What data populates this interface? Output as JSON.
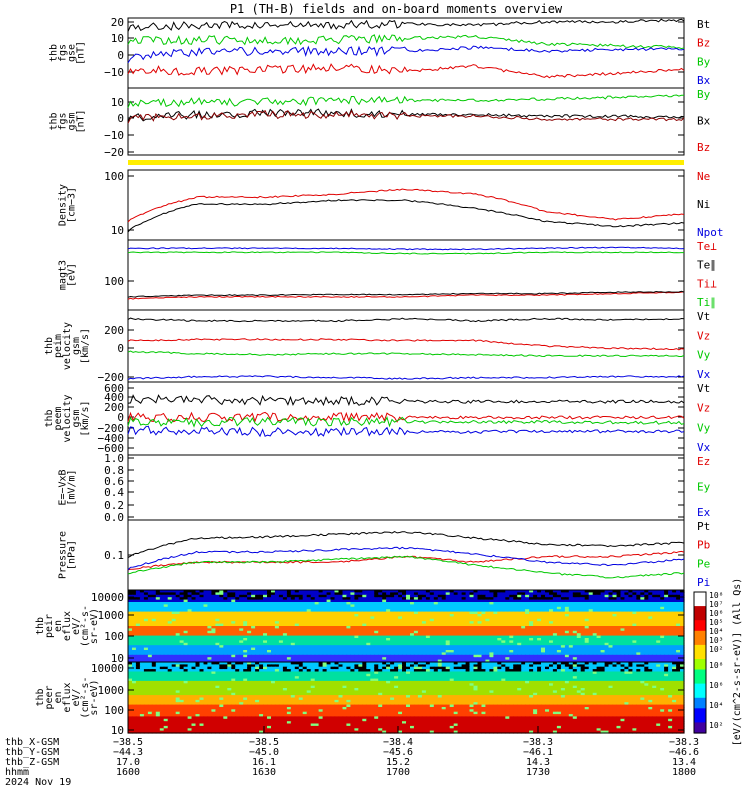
{
  "title": "P1 (TH-B) fields and on-board moments overview",
  "panels": [
    {
      "id": "fgs-gse",
      "ylabel": [
        "thb",
        "fgs",
        "gse",
        "[nT]"
      ],
      "yticks": [
        "20",
        "10",
        "0",
        "−10"
      ],
      "legend": [
        {
          "text": "Bt",
          "color": "#000000"
        },
        {
          "text": "Bz",
          "color": "#e00000"
        },
        {
          "text": "By",
          "color": "#00c800"
        },
        {
          "text": "Bx",
          "color": "#0000e0"
        }
      ]
    },
    {
      "id": "fgs-gsm",
      "ylabel": [
        "thb",
        "fgs",
        "gsm",
        "[nT]"
      ],
      "yticks": [
        "10",
        "0",
        "−10",
        "−20"
      ],
      "legend": [
        {
          "text": "By",
          "color": "#00c800"
        },
        {
          "text": "Bx",
          "color": "#000000"
        },
        {
          "text": "Bz",
          "color": "#e00000"
        }
      ]
    },
    {
      "id": "density",
      "ylabel": [
        "Density",
        "[cm−3]"
      ],
      "yticks": [
        "100",
        "10"
      ],
      "legend": [
        {
          "text": "Ne",
          "color": "#e00000"
        },
        {
          "text": "Ni",
          "color": "#000000"
        },
        {
          "text": "Npot",
          "color": "#0000e0"
        }
      ]
    },
    {
      "id": "temp",
      "ylabel": [
        "magt3",
        "[eV]"
      ],
      "yticks": [
        "100"
      ],
      "legend": [
        {
          "text": "Te⊥",
          "color": "#e00000"
        },
        {
          "text": "Te∥",
          "color": "#000000"
        },
        {
          "text": "Ti⊥",
          "color": "#e00000"
        },
        {
          "text": "Ti∥",
          "color": "#00c800"
        }
      ]
    },
    {
      "id": "peim",
      "ylabel": [
        "thb",
        "peim",
        "velocity",
        "gsm",
        "[km/s]"
      ],
      "yticks": [
        "200",
        "0",
        "−200"
      ],
      "legend": [
        {
          "text": "Vt",
          "color": "#000000"
        },
        {
          "text": "Vz",
          "color": "#e00000"
        },
        {
          "text": "Vy",
          "color": "#00c800"
        },
        {
          "text": "Vx",
          "color": "#0000e0"
        }
      ]
    },
    {
      "id": "peem",
      "ylabel": [
        "thb",
        "peem",
        "velocity",
        "gsm",
        "[km/s]"
      ],
      "yticks": [
        "600",
        "400",
        "200",
        "0",
        "−200",
        "−400",
        "−600"
      ],
      "legend": [
        {
          "text": "Vt",
          "color": "#000000"
        },
        {
          "text": "Vz",
          "color": "#e00000"
        },
        {
          "text": "Vy",
          "color": "#00c800"
        },
        {
          "text": "Vx",
          "color": "#0000e0"
        }
      ]
    },
    {
      "id": "efield",
      "ylabel": [
        "E=−VxB",
        "[mV/m]"
      ],
      "yticks": [
        "1.0",
        "0.8",
        "0.6",
        "0.4",
        "0.2",
        "0.0"
      ],
      "legend": [
        {
          "text": "Ez",
          "color": "#e00000"
        },
        {
          "text": "Ey",
          "color": "#00c800"
        },
        {
          "text": "Ex",
          "color": "#0000e0"
        }
      ]
    },
    {
      "id": "pressure",
      "ylabel": [
        "Pressure",
        "[nPa]"
      ],
      "yticks": [
        "0.1"
      ],
      "legend": [
        {
          "text": "Pt",
          "color": "#000000"
        },
        {
          "text": "Pb",
          "color": "#e00000"
        },
        {
          "text": "Pe",
          "color": "#00c800"
        },
        {
          "text": "Pi",
          "color": "#0000e0"
        }
      ]
    },
    {
      "id": "peir",
      "ylabel": [
        "thb",
        "peir",
        "en",
        "eflux",
        "eV/",
        "(cm²-s-",
        "sr-eV)"
      ],
      "yticks": [
        "10000",
        "1000",
        "100",
        "10"
      ]
    },
    {
      "id": "peer",
      "ylabel": [
        "thb",
        "peer",
        "en",
        "eflux",
        "eV/",
        "(cm²-s-",
        "sr-eV)"
      ],
      "yticks": [
        "10000",
        "1000",
        "100",
        "10"
      ]
    }
  ],
  "colorbar": {
    "label": "[eV/(cm^2-s-sr-eV)] (All Qs)",
    "ticks_top": [
      "10⁸",
      "10⁷",
      "10⁶",
      "10⁵",
      "10⁴",
      "10³",
      "10²"
    ],
    "ticks_bottom": [
      "10⁸",
      "10⁶",
      "10⁴",
      "10²"
    ]
  },
  "xaxis": {
    "rows": [
      {
        "label": "thb_X-GSM",
        "values": [
          "−38.5",
          "−38.5",
          "−38.4",
          "−38.3",
          "−38.3"
        ]
      },
      {
        "label": "thb_Y-GSM",
        "values": [
          "−44.3",
          "−45.0",
          "−45.6",
          "−46.1",
          "−46.6"
        ]
      },
      {
        "label": "thb_Z-GSM",
        "values": [
          "17.0",
          "16.1",
          "15.2",
          "14.3",
          "13.4"
        ]
      },
      {
        "label": "hhmm",
        "values": [
          "1600",
          "1630",
          "1700",
          "1730",
          "1800"
        ]
      }
    ],
    "date": "2024 Nov 19"
  },
  "chart_data": {
    "type": "line",
    "title": "P1 (TH-B) fields and on-board moments overview",
    "x_hhmm": [
      1600,
      1615,
      1630,
      1645,
      1700,
      1715,
      1730,
      1745,
      1800
    ],
    "panels": [
      {
        "name": "thb fgs gse [nT]",
        "ylim": [
          -18,
          20
        ],
        "series": [
          {
            "name": "Bt",
            "values": [
              15,
              16,
              16,
              16,
              17,
              16,
              18,
              18,
              19
            ]
          },
          {
            "name": "Bz",
            "values": [
              -8,
              -9,
              -8,
              -7,
              -9,
              -6,
              -12,
              -10,
              -8
            ]
          },
          {
            "name": "By",
            "values": [
              8,
              8,
              8,
              8,
              9,
              10,
              6,
              5,
              4
            ]
          },
          {
            "name": "Bx",
            "values": [
              -2,
              2,
              2,
              2,
              2,
              4,
              2,
              3,
              3
            ]
          }
        ]
      },
      {
        "name": "thb fgs gsm [nT]",
        "ylim": [
          -28,
          15
        ],
        "series": [
          {
            "name": "By",
            "values": [
              5,
              6,
              6,
              7,
              7,
              7,
              8,
              9,
              10
            ]
          },
          {
            "name": "Bx",
            "values": [
              -4,
              -2,
              -1,
              -1,
              -2,
              -2,
              -3,
              -3,
              -4
            ]
          },
          {
            "name": "Bz",
            "values": [
              -5,
              -3,
              -2,
              -2,
              -3,
              -3,
              -5,
              -5,
              -5
            ]
          }
        ]
      },
      {
        "name": "Density [cm-3]",
        "scale": "log",
        "ylim": [
          7,
          120
        ],
        "series": [
          {
            "name": "Ne",
            "values": [
              15,
              40,
              40,
              45,
              55,
              45,
              22,
              16,
              20
            ]
          },
          {
            "name": "Ni",
            "values": [
              10,
              30,
              30,
              35,
              35,
              25,
              15,
              12,
              14
            ]
          },
          {
            "name": "Npot",
            "values": []
          }
        ]
      },
      {
        "name": "magt3 [eV]",
        "scale": "log",
        "ylim": [
          20,
          1500
        ],
        "series": [
          {
            "name": "Te⊥",
            "values": [
              40,
              45,
              45,
              45,
              45,
              50,
              50,
              55,
              60
            ]
          },
          {
            "name": "Te∥",
            "values": [
              45,
              50,
              50,
              52,
              52,
              55,
              55,
              60,
              62
            ]
          },
          {
            "name": "Ti⊥",
            "values": [
              900,
              900,
              900,
              900,
              850,
              850,
              900,
              950,
              900
            ]
          },
          {
            "name": "Ti∥",
            "values": [
              700,
              700,
              700,
              700,
              650,
              650,
              700,
              700,
              700
            ]
          }
        ]
      },
      {
        "name": "thb peim velocity gsm [km/s]",
        "ylim": [
          -280,
          380
        ],
        "series": [
          {
            "name": "Vt",
            "values": [
              300,
              280,
              280,
              280,
              300,
              280,
              300,
              290,
              300
            ]
          },
          {
            "name": "Vz",
            "values": [
              100,
              110,
              110,
              110,
              100,
              100,
              50,
              30,
              20
            ]
          },
          {
            "name": "Vy",
            "values": [
              0,
              -20,
              -30,
              -20,
              -20,
              -30,
              -40,
              -40,
              -40
            ]
          },
          {
            "name": "Vx",
            "values": [
              -250,
              -230,
              -230,
              -240,
              -250,
              -240,
              -240,
              -230,
              -230
            ]
          }
        ]
      },
      {
        "name": "thb peem velocity gsm [km/s]",
        "ylim": [
          -650,
          650
        ],
        "series": [
          {
            "name": "Vt",
            "values": [
              350,
              330,
              320,
              320,
              300,
              300,
              300,
              300,
              300
            ]
          },
          {
            "name": "Vz",
            "values": [
              20,
              20,
              30,
              20,
              20,
              20,
              20,
              20,
              20
            ]
          },
          {
            "name": "Vy",
            "values": [
              -50,
              -60,
              -60,
              -50,
              -60,
              -60,
              -60,
              -70,
              -80
            ]
          },
          {
            "name": "Vx",
            "values": [
              -200,
              -230,
              -240,
              -240,
              -240,
              -240,
              -230,
              -230,
              -230
            ]
          }
        ]
      },
      {
        "name": "E=-VxB [mV/m]",
        "ylim": [
          0,
          1.0
        ],
        "series": []
      },
      {
        "name": "Pressure [nPa]",
        "scale": "log",
        "ylim": [
          0.04,
          0.4
        ],
        "series": [
          {
            "name": "Pt",
            "values": [
              0.12,
              0.22,
              0.23,
              0.25,
              0.27,
              0.22,
              0.18,
              0.17,
              0.19
            ]
          },
          {
            "name": "Pb",
            "values": [
              0.08,
              0.1,
              0.1,
              0.1,
              0.12,
              0.1,
              0.12,
              0.12,
              0.14
            ]
          },
          {
            "name": "Pe",
            "values": [
              0.07,
              0.1,
              0.1,
              0.11,
              0.12,
              0.09,
              0.07,
              0.06,
              0.07
            ]
          },
          {
            "name": "Pi",
            "values": [
              0.08,
              0.14,
              0.14,
              0.15,
              0.16,
              0.13,
              0.1,
              0.09,
              0.11
            ]
          }
        ]
      }
    ],
    "spectrograms": [
      {
        "name": "thb peir en eflux",
        "scale": "log",
        "ylim": [
          5,
          20000
        ],
        "colorbar": "log 10^2–10^8"
      },
      {
        "name": "thb peer en eflux",
        "scale": "log",
        "ylim": [
          5,
          20000
        ],
        "colorbar": "log 10^2–10^8"
      }
    ]
  }
}
